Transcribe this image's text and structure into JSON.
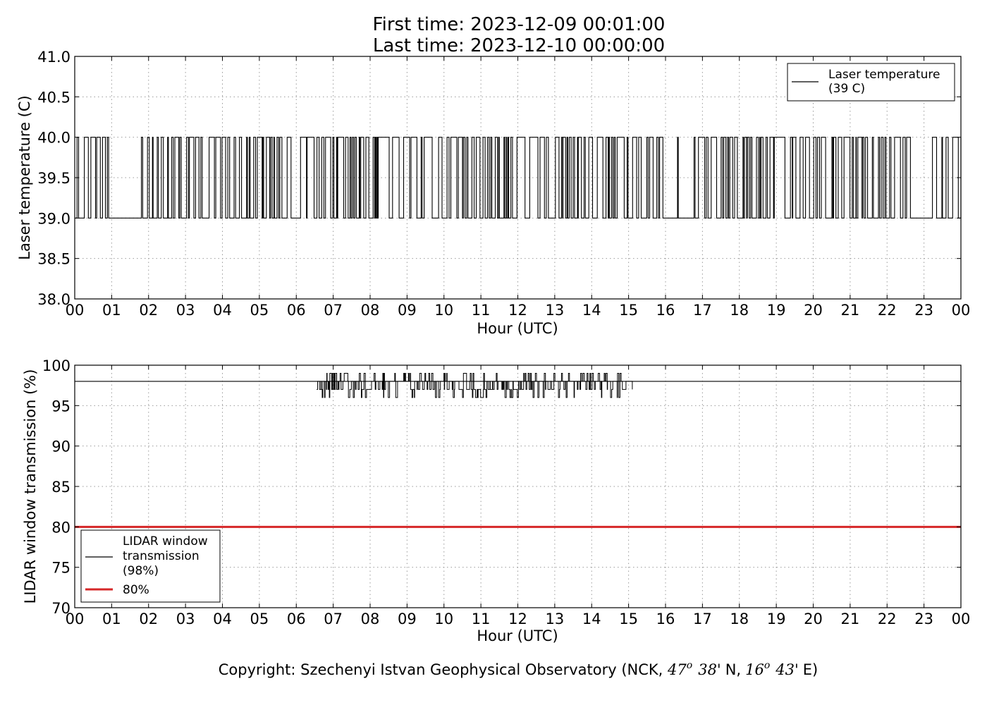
{
  "header": {
    "title_line1": "First time: 2023-12-09 00:01:00",
    "title_line2": "Last time: 2023-12-10 00:00:00"
  },
  "footer": {
    "copyright_prefix": "Copyright: Szechenyi Istvan Geophysical Observatory (NCK, ",
    "lat_deg": "47",
    "deg_symbol": "o",
    "lat_min": "38'",
    "lat_hem": "N,",
    "lon_deg": "16",
    "lon_min": "43'",
    "lon_hem": "E)"
  },
  "chart_data": [
    {
      "type": "line",
      "xlabel": "Hour (UTC)",
      "ylabel": "Laser temperature (C)",
      "xlim": [
        0,
        24
      ],
      "ylim": [
        38.0,
        41.0
      ],
      "xtick_labels": [
        "00",
        "01",
        "02",
        "03",
        "04",
        "05",
        "06",
        "07",
        "08",
        "09",
        "10",
        "11",
        "12",
        "13",
        "14",
        "15",
        "16",
        "17",
        "18",
        "19",
        "20",
        "21",
        "22",
        "23",
        "00"
      ],
      "ytick_values": [
        38.0,
        38.5,
        39.0,
        39.5,
        40.0,
        40.5,
        41.0
      ],
      "ytick_labels": [
        "38.0",
        "38.5",
        "39.0",
        "39.5",
        "40.0",
        "40.5",
        "41.0"
      ],
      "grid": true,
      "legend_position": "top-right",
      "series": [
        {
          "name_line1": "Laser temperature",
          "name_line2": "(39 C)",
          "color": "#000000",
          "low_value": 39.0,
          "high_value": 40.0,
          "description_of_values": "switches between 39.0 and 40.0 throughout the day",
          "quiet_intervals_hours": [
            [
              0.95,
              1.65
            ],
            [
              15.9,
              16.3
            ],
            [
              22.7,
              23.15
            ]
          ]
        }
      ]
    },
    {
      "type": "line",
      "xlabel": "Hour (UTC)",
      "ylabel": "LIDAR window transmission (%)",
      "xlim": [
        0,
        24
      ],
      "ylim": [
        70,
        100
      ],
      "xtick_labels": [
        "00",
        "01",
        "02",
        "03",
        "04",
        "05",
        "06",
        "07",
        "08",
        "09",
        "10",
        "11",
        "12",
        "13",
        "14",
        "15",
        "16",
        "17",
        "18",
        "19",
        "20",
        "21",
        "22",
        "23",
        "00"
      ],
      "ytick_values": [
        70,
        75,
        80,
        85,
        90,
        95,
        100
      ],
      "ytick_labels": [
        "70",
        "75",
        "80",
        "85",
        "90",
        "95",
        "100"
      ],
      "grid": true,
      "legend_position": "bottom-left",
      "series": [
        {
          "name_line1": "LIDAR window",
          "name_line2": "transmission",
          "name_line3": "(98%)",
          "color": "#000000",
          "baseline_value": 98,
          "fluctuation_interval_hours": [
            6.55,
            15.1
          ],
          "fluctuation_range": [
            96,
            99
          ],
          "dip_interval_hours": [
            10.45,
            11.2
          ],
          "dip_value": 96
        },
        {
          "name": "80%",
          "color": "#d62728",
          "value": 80
        }
      ]
    }
  ]
}
